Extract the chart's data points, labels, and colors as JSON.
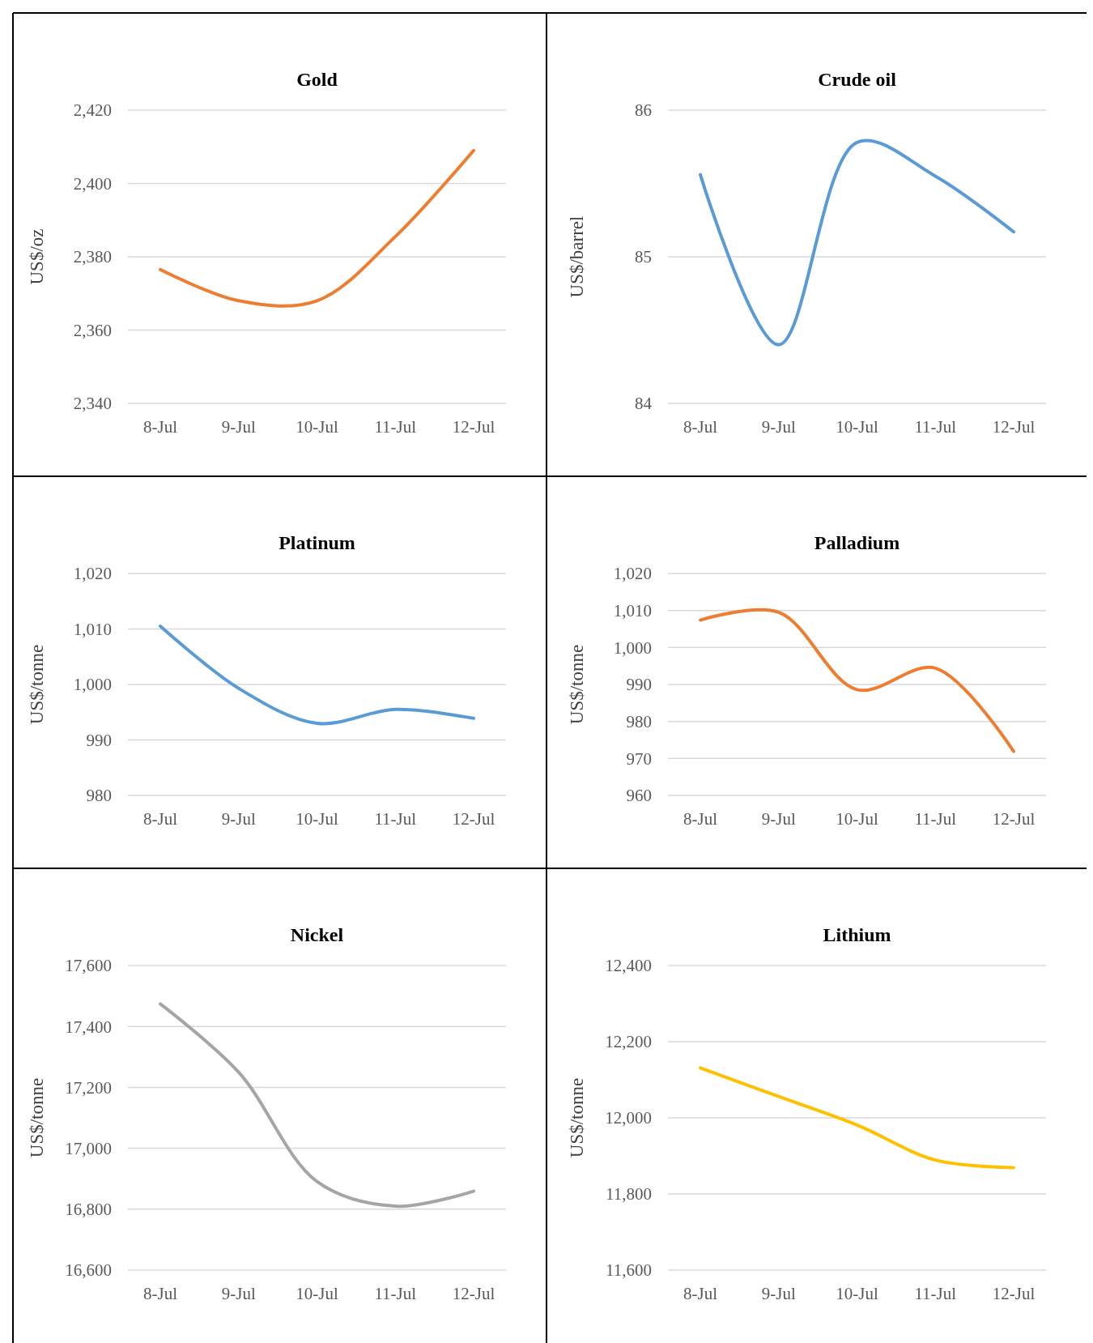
{
  "chart_data": [
    {
      "type": "line",
      "title": "Gold",
      "ylabel": "US$/oz",
      "categories": [
        "8-Jul",
        "9-Jul",
        "10-Jul",
        "11-Jul",
        "12-Jul"
      ],
      "series": [
        {
          "color": "#ed7d31",
          "values": [
            2376.5,
            2368,
            2368,
            2385.5,
            2409
          ]
        }
      ],
      "ylim": [
        2340,
        2420
      ],
      "yticks": [
        {
          "value": 2340,
          "label": "2,340"
        },
        {
          "value": 2360,
          "label": "2,360"
        },
        {
          "value": 2380,
          "label": "2,380"
        },
        {
          "value": 2400,
          "label": "2,400"
        },
        {
          "value": 2420,
          "label": "2,420"
        }
      ],
      "grid": "y"
    },
    {
      "type": "line",
      "title": "Crude oil",
      "ylabel": "US$/barrel",
      "categories": [
        "8-Jul",
        "9-Jul",
        "10-Jul",
        "11-Jul",
        "12-Jul"
      ],
      "series": [
        {
          "color": "#5b9bd5",
          "values": [
            85.56,
            84.4,
            85.78,
            85.55,
            85.17
          ]
        }
      ],
      "ylim": [
        84,
        86
      ],
      "yticks": [
        84,
        85,
        86
      ],
      "grid": "y"
    },
    {
      "type": "line",
      "title": "Platinum",
      "ylabel": "US$/tonne",
      "categories": [
        "8-Jul",
        "9-Jul",
        "10-Jul",
        "11-Jul",
        "12-Jul"
      ],
      "series": [
        {
          "color": "#5b9bd5",
          "values": [
            1010.5,
            999.3,
            993,
            995.5,
            993.9
          ]
        }
      ],
      "ylim": [
        980,
        1020
      ],
      "yticks": [
        980,
        990,
        {
          "value": 1000,
          "label": "1,000"
        },
        {
          "value": 1010,
          "label": "1,010"
        },
        {
          "value": 1020,
          "label": "1,020"
        }
      ],
      "grid": "y"
    },
    {
      "type": "line",
      "title": "Palladium",
      "ylabel": "US$/tonne",
      "categories": [
        "8-Jul",
        "9-Jul",
        "10-Jul",
        "11-Jul",
        "12-Jul"
      ],
      "series": [
        {
          "color": "#ed7d31",
          "values": [
            1007.4,
            1009.5,
            988.6,
            994.4,
            971.9
          ]
        }
      ],
      "ylim": [
        960,
        1020
      ],
      "yticks": [
        960,
        970,
        980,
        990,
        {
          "value": 1000,
          "label": "1,000"
        },
        {
          "value": 1010,
          "label": "1,010"
        },
        {
          "value": 1020,
          "label": "1,020"
        }
      ],
      "grid": "y"
    },
    {
      "type": "line",
      "title": "Nickel",
      "ylabel": "US$/tonne",
      "categories": [
        "8-Jul",
        "9-Jul",
        "10-Jul",
        "11-Jul",
        "12-Jul"
      ],
      "series": [
        {
          "color": "#a5a5a5",
          "values": [
            17474,
            17250,
            16891,
            16810,
            16859
          ]
        }
      ],
      "ylim": [
        16600,
        17600
      ],
      "yticks": [
        {
          "value": 16600,
          "label": "16,600"
        },
        {
          "value": 16800,
          "label": "16,800"
        },
        {
          "value": 17000,
          "label": "17,000"
        },
        {
          "value": 17200,
          "label": "17,200"
        },
        {
          "value": 17400,
          "label": "17,400"
        },
        {
          "value": 17600,
          "label": "17,600"
        }
      ],
      "grid": "y"
    },
    {
      "type": "line",
      "title": "Lithium",
      "ylabel": "US$/tonne",
      "categories": [
        "8-Jul",
        "9-Jul",
        "10-Jul",
        "11-Jul",
        "12-Jul"
      ],
      "series": [
        {
          "color": "#ffc000",
          "values": [
            12131,
            12056,
            11981,
            11889,
            11869
          ]
        }
      ],
      "ylim": [
        11600,
        12400
      ],
      "yticks": [
        {
          "value": 11600,
          "label": "11,600"
        },
        {
          "value": 11800,
          "label": "11,800"
        },
        {
          "value": 12000,
          "label": "12,000"
        },
        {
          "value": 12200,
          "label": "12,200"
        },
        {
          "value": 12400,
          "label": "12,400"
        }
      ],
      "grid": "y"
    }
  ]
}
